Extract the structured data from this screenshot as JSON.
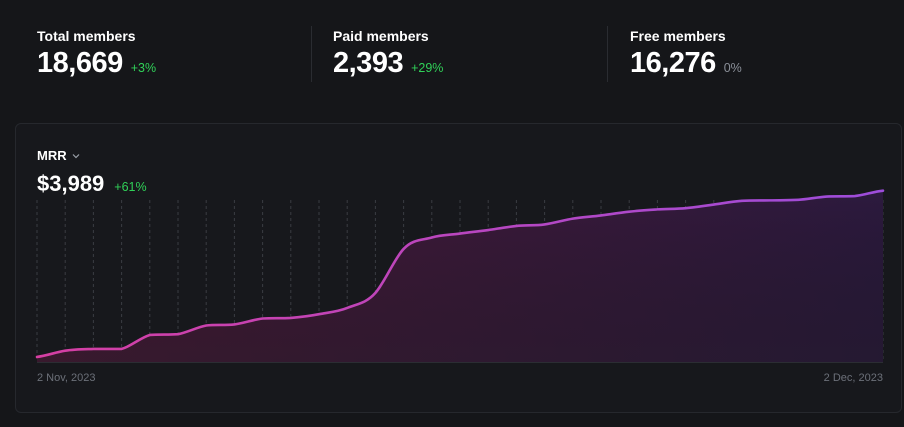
{
  "stats": [
    {
      "label": "Total members",
      "value": "18,669",
      "change": "+3%",
      "status": "positive"
    },
    {
      "label": "Paid members",
      "value": "2,393",
      "change": "+29%",
      "status": "positive"
    },
    {
      "label": "Free members",
      "value": "16,276",
      "change": "0%",
      "status": "neutral"
    }
  ],
  "chart_card": {
    "metric_label": "MRR",
    "metric_icon": "chevron-down-icon",
    "value": "$3,989",
    "change": "+61%",
    "x_start_label": "2 Nov, 2023",
    "x_end_label": "2 Dec, 2023"
  },
  "colors": {
    "positive": "#30d158",
    "neutral": "#8a8f98",
    "line_start": "#d63fa3",
    "line_end": "#9d4ddb"
  },
  "chart_data": {
    "type": "area",
    "title": "",
    "xlabel": "",
    "ylabel": "",
    "x_ticks": [
      "2 Nov, 2023",
      "2 Dec, 2023"
    ],
    "x": [
      "2023-11-02",
      "2023-11-03",
      "2023-11-04",
      "2023-11-05",
      "2023-11-06",
      "2023-11-07",
      "2023-11-08",
      "2023-11-09",
      "2023-11-10",
      "2023-11-11",
      "2023-11-12",
      "2023-11-13",
      "2023-11-14",
      "2023-11-15",
      "2023-11-16",
      "2023-11-17",
      "2023-11-18",
      "2023-11-19",
      "2023-11-20",
      "2023-11-21",
      "2023-11-22",
      "2023-11-23",
      "2023-11-24",
      "2023-11-25",
      "2023-11-26",
      "2023-11-27",
      "2023-11-28",
      "2023-11-29",
      "2023-11-30",
      "2023-12-01",
      "2023-12-02"
    ],
    "series": [
      {
        "values": [
          2476,
          2533,
          2549,
          2549,
          2676,
          2683,
          2762,
          2772,
          2826,
          2831,
          2865,
          2922,
          3059,
          3459,
          3563,
          3599,
          3631,
          3668,
          3682,
          3735,
          3764,
          3798,
          3819,
          3830,
          3863,
          3897,
          3901,
          3906,
          3936,
          3940,
          3989
        ]
      }
    ],
    "ylim": [
      2430,
      4050
    ],
    "grid": {
      "vertical_dashed": true,
      "horizontal": false
    },
    "legend": "none"
  }
}
